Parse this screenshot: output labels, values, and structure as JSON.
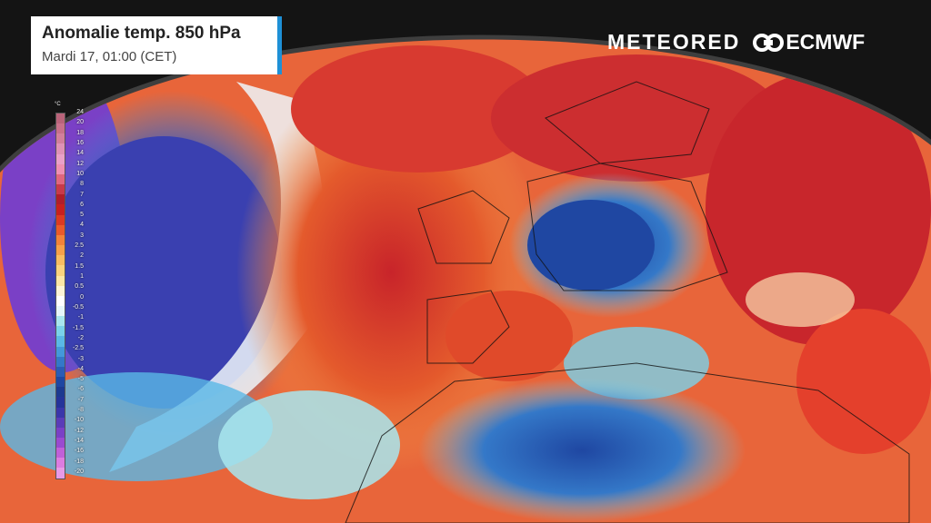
{
  "header": {
    "title": "Anomalie temp. 850 hPa",
    "subtitle": "Mardi 17, 01:00 (CET)"
  },
  "brand": {
    "meteored": "METEORED",
    "ecmwf": "ECMWF",
    "accent": "#1e90d6"
  },
  "legend": {
    "unit": "°C",
    "labels": [
      "24",
      "20",
      "18",
      "16",
      "14",
      "12",
      "10",
      "8",
      "7",
      "6",
      "5",
      "4",
      "3",
      "2.5",
      "2",
      "1.5",
      "1",
      "0.5",
      "0",
      "-0.5",
      "-1",
      "-1.5",
      "-2",
      "-2.5",
      "-3",
      "-4",
      "-5",
      "-6",
      "-7",
      "-8",
      "-10",
      "-12",
      "-14",
      "-16",
      "-18",
      "-20"
    ],
    "colors": [
      "#b9637a",
      "#c8708a",
      "#d27f9c",
      "#df92b6",
      "#e9a0c8",
      "#ee8fb2",
      "#e0667e",
      "#c83a4a",
      "#b01e2a",
      "#c8201e",
      "#dc3a22",
      "#ea5a2a",
      "#f2823a",
      "#f6a04a",
      "#f8bc62",
      "#fad27e",
      "#fce6a6",
      "#fdf4d6",
      "#ffffff",
      "#e6f6fa",
      "#a8e6ee",
      "#7ad2ea",
      "#5ab8e6",
      "#4498da",
      "#3478c8",
      "#2a5cb6",
      "#1f47a2",
      "#1d3a90",
      "#25349a",
      "#3a36aa",
      "#5a3cb8",
      "#7a40c6",
      "#9a4ad0",
      "#c060d8",
      "#dc7ce0",
      "#e89ae6"
    ]
  }
}
